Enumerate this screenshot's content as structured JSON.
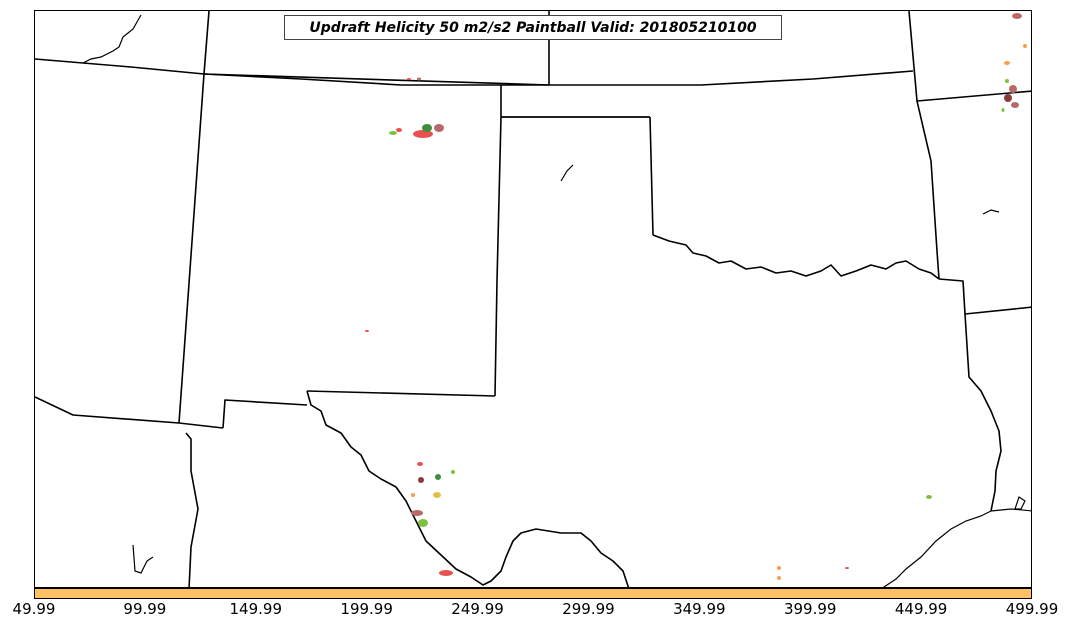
{
  "title": "Updraft Helicity 50 m2/s2 Paintball Valid: 201805210100",
  "colorbar": {
    "color": "#ffc163",
    "ticks": [
      "49.99",
      "99.99",
      "149.99",
      "199.99",
      "249.99",
      "299.99",
      "349.99",
      "399.99",
      "449.99",
      "499.99"
    ]
  },
  "paintball_colors": [
    "#e8514f",
    "#b86a6a",
    "#7fc241",
    "#f5a04b",
    "#e0c04a",
    "#3e8e3e",
    "#8b3a3a"
  ],
  "legend_colors": {
    "border_lines": "#000000",
    "background": "#ffffff"
  }
}
